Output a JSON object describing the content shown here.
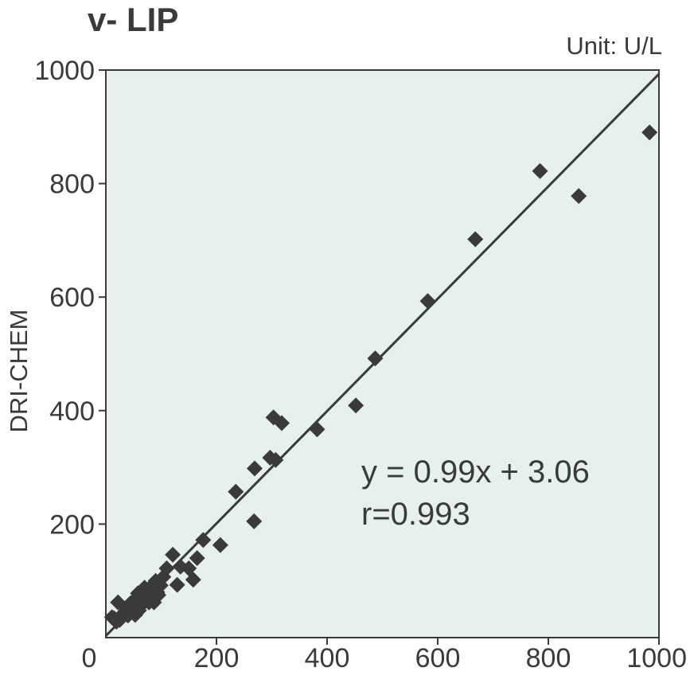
{
  "chart_data": {
    "type": "scatter",
    "title": "v- LIP",
    "unit_label": "Unit: U/L",
    "xlabel": "",
    "ylabel": "DRI-CHEM",
    "xlim": [
      0,
      1000
    ],
    "ylim": [
      0,
      1000
    ],
    "xticks": [
      0,
      200,
      400,
      600,
      800,
      1000
    ],
    "yticks": [
      200,
      400,
      600,
      800,
      1000
    ],
    "grid": false,
    "plot_background": "#e6f1ec",
    "marker_color": "#3a3a3a",
    "regression": {
      "slope": 0.99,
      "intercept": 3.06
    },
    "annotations": [
      "y = 0.99x + 3.06",
      "r=0.993"
    ],
    "points": [
      [
        983,
        890
      ],
      [
        855,
        778
      ],
      [
        785,
        822
      ],
      [
        668,
        702
      ],
      [
        582,
        593
      ],
      [
        487,
        492
      ],
      [
        452,
        409
      ],
      [
        382,
        367
      ],
      [
        318,
        378
      ],
      [
        303,
        388
      ],
      [
        307,
        313
      ],
      [
        297,
        317
      ],
      [
        269,
        298
      ],
      [
        268,
        205
      ],
      [
        235,
        257
      ],
      [
        207,
        163
      ],
      [
        176,
        172
      ],
      [
        165,
        140
      ],
      [
        158,
        102
      ],
      [
        150,
        122
      ],
      [
        135,
        125
      ],
      [
        129,
        93
      ],
      [
        121,
        146
      ],
      [
        110,
        122
      ],
      [
        104,
        107
      ],
      [
        99,
        92
      ],
      [
        93,
        80
      ],
      [
        90,
        100
      ],
      [
        86,
        72
      ],
      [
        82,
        90
      ],
      [
        78,
        62
      ],
      [
        74,
        80
      ],
      [
        70,
        88
      ],
      [
        66,
        70
      ],
      [
        62,
        55
      ],
      [
        58,
        78
      ],
      [
        55,
        62
      ],
      [
        51,
        66
      ],
      [
        48,
        47
      ],
      [
        44,
        60
      ],
      [
        40,
        39
      ],
      [
        36,
        52
      ],
      [
        32,
        43
      ],
      [
        28,
        36
      ],
      [
        25,
        31
      ],
      [
        22,
        62
      ],
      [
        19,
        28
      ],
      [
        15,
        34
      ],
      [
        11,
        36
      ],
      [
        60,
        48
      ],
      [
        67,
        82
      ],
      [
        45,
        55
      ],
      [
        87,
        62
      ],
      [
        95,
        75
      ],
      [
        53,
        40
      ]
    ]
  }
}
